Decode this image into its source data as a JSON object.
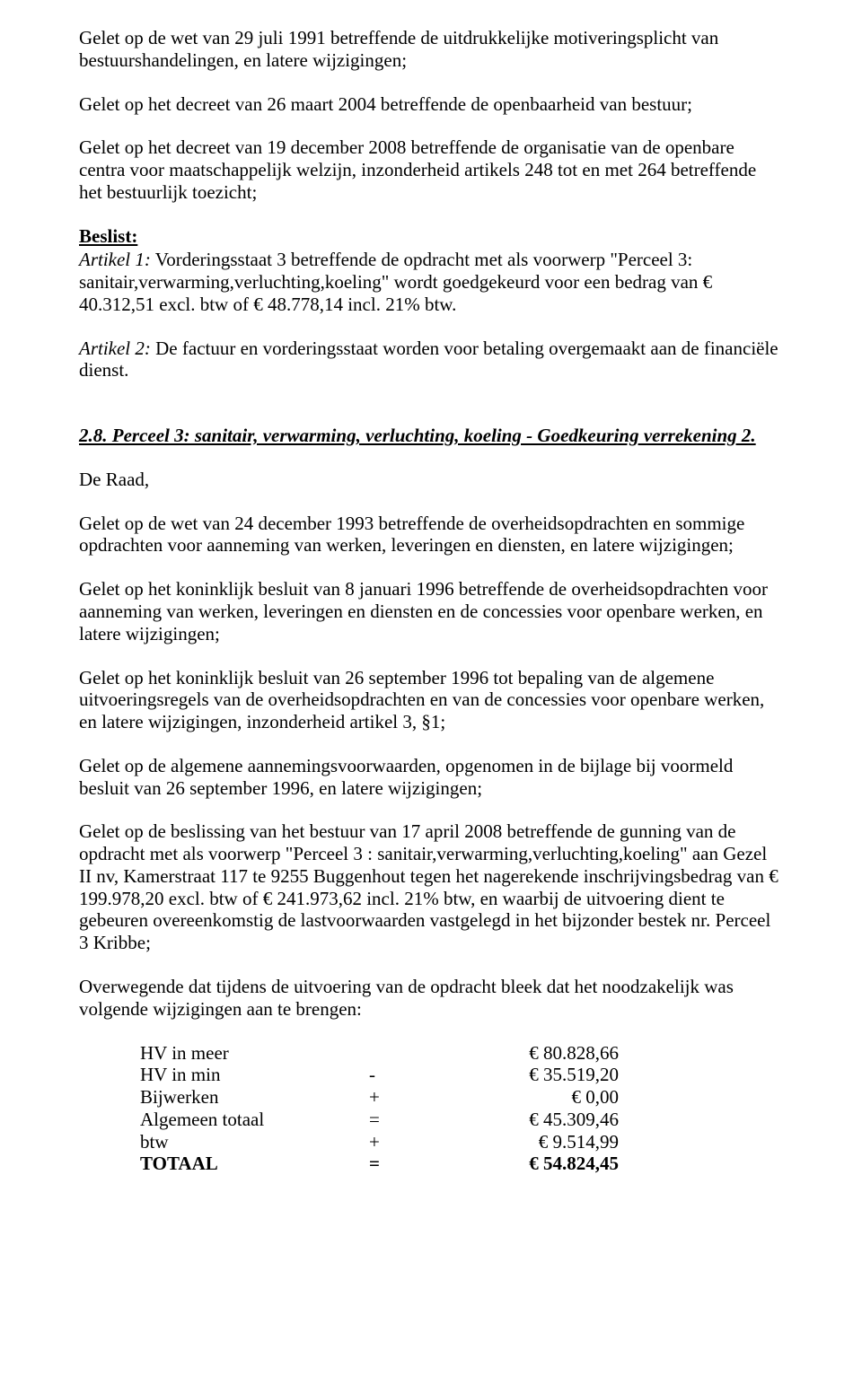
{
  "p1": "Gelet op de wet van 29 juli 1991 betreffende de uitdrukkelijke motiveringsplicht van bestuurshandelingen, en latere wijzigingen;",
  "p2": "Gelet op het decreet van 26 maart 2004 betreffende de openbaarheid van bestuur;",
  "p3": "Gelet op het decreet van 19 december 2008 betreffende de organisatie van de openbare centra voor maatschappelijk welzijn, inzonderheid artikels 248 tot en met 264 betreffende het bestuurlijk toezicht;",
  "beslist": "Beslist:",
  "art1_label": "Artikel 1:",
  "art1_text": " Vorderingsstaat 3 betreffende de opdracht met als voorwerp \"Perceel 3: sanitair,verwarming,verluchting,koeling\" wordt goedgekeurd voor een bedrag van € 40.312,51 excl. btw of € 48.778,14 incl. 21% btw.",
  "art2_label": "Artikel 2:",
  "art2_text": " De factuur en vorderingsstaat worden voor betaling overgemaakt aan de financiële dienst.",
  "heading": "2.8. Perceel 3: sanitair, verwarming, verluchting, koeling - Goedkeuring verrekening 2.",
  "p4": "De Raad,",
  "p5": "Gelet op de wet van 24 december 1993 betreffende de overheidsopdrachten en sommige opdrachten voor aanneming van werken, leveringen en diensten, en latere wijzigingen;",
  "p6": "Gelet op het koninklijk besluit van 8 januari 1996 betreffende de overheidsopdrachten voor aanneming van werken, leveringen en diensten en de concessies voor openbare werken, en latere wijzigingen;",
  "p7": "Gelet op het koninklijk besluit van 26 september 1996 tot bepaling van de algemene uitvoeringsregels van de overheidsopdrachten en van de concessies voor openbare werken, en latere wijzigingen, inzonderheid artikel 3, §1;",
  "p8": "Gelet op de algemene aannemingsvoorwaarden, opgenomen in de bijlage bij voormeld besluit van 26 september 1996, en latere wijzigingen;",
  "p9": "Gelet op de beslissing van het bestuur van 17 april 2008 betreffende de gunning van de opdracht met als voorwerp \"Perceel 3 : sanitair,verwarming,verluchting,koeling\" aan Gezel II nv, Kamerstraat 117 te 9255 Buggenhout tegen het nagerekende inschrijvingsbedrag van € 199.978,20 excl. btw of € 241.973,62 incl. 21% btw, en waarbij de uitvoering dient te gebeuren overeenkomstig de lastvoorwaarden vastgelegd in het bijzonder bestek nr. Perceel 3 Kribbe;",
  "p10": "Overwegende dat tijdens de uitvoering van de opdracht bleek dat het noodzakelijk was volgende wijzigingen aan te brengen:",
  "table": {
    "rows": [
      {
        "label": "HV in meer",
        "sign": "",
        "value": "€ 80.828,66"
      },
      {
        "label": "HV in min",
        "sign": "-",
        "value": "€ 35.519,20"
      },
      {
        "label": "Bijwerken",
        "sign": "+",
        "value": "€ 0,00"
      },
      {
        "label": "Algemeen totaal",
        "sign": "=",
        "value": "€ 45.309,46"
      },
      {
        "label": "btw",
        "sign": "+",
        "value": "€ 9.514,99"
      },
      {
        "label": "TOTAAL",
        "sign": "=",
        "value": "€ 54.824,45"
      }
    ]
  }
}
